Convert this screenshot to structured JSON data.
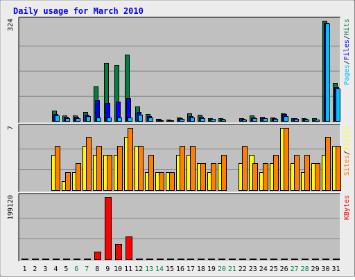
{
  "chart_data": {
    "type": "bar",
    "title": "Daily usage for March 2010",
    "days": [
      "1",
      "2",
      "3",
      "4",
      "5",
      "6",
      "7",
      "8",
      "9",
      "10",
      "11",
      "12",
      "13",
      "14",
      "15",
      "16",
      "17",
      "18",
      "19",
      "20",
      "21",
      "22",
      "23",
      "24",
      "25",
      "26",
      "27",
      "28",
      "29",
      "30",
      "31"
    ],
    "weekend_days": [
      "6",
      "7",
      "13",
      "14",
      "20",
      "21",
      "27",
      "28"
    ],
    "colors": {
      "background": "#c0c0c0",
      "frame": "#ececec",
      "title": "#0000ff",
      "weekday_label": "#000000",
      "weekend_label": "#008040",
      "hits": "#008040",
      "files": "#0000ff",
      "pages": "#00c0ff",
      "visits": "#ffff00",
      "sites": "#ff8000",
      "kbytes": "#ff0000",
      "gridline": "#808080"
    },
    "panels": [
      {
        "id": "hits-files-pages",
        "scale_label": "324",
        "ymax": 324,
        "legend": [
          "Pages",
          "/",
          "Files",
          "/",
          "Hits"
        ],
        "series": [
          {
            "name": "Hits",
            "values": [
              0,
              0,
              0,
              34,
              18,
              18,
              30,
              112,
              188,
              182,
              214,
              46,
              22,
              6,
              4,
              12,
              24,
              20,
              10,
              8,
              0,
              8,
              18,
              14,
              12,
              24,
              10,
              10,
              8,
              324,
              124
            ]
          },
          {
            "name": "Files",
            "values": [
              0,
              0,
              0,
              22,
              14,
              14,
              20,
              66,
              58,
              62,
              74,
              28,
              16,
              4,
              2,
              8,
              16,
              14,
              6,
              6,
              0,
              6,
              12,
              10,
              8,
              22,
              8,
              6,
              4,
              318,
              110
            ]
          },
          {
            "name": "Pages",
            "values": [
              0,
              0,
              0,
              18,
              10,
              10,
              16,
              12,
              12,
              12,
              12,
              20,
              12,
              3,
              2,
              6,
              12,
              8,
              6,
              4,
              0,
              4,
              10,
              8,
              6,
              16,
              6,
              4,
              4,
              316,
              104
            ]
          }
        ]
      },
      {
        "id": "visits-sites",
        "scale_label": "7",
        "ymax": 7,
        "legend": [
          "Sites",
          "/",
          "Visits"
        ],
        "series": [
          {
            "name": "Visits",
            "values": [
              0,
              0,
              0,
              4,
              1,
              2,
              5,
              4,
              4,
              4,
              6,
              5,
              2,
              2,
              2,
              4,
              4,
              3,
              2,
              3,
              0,
              3,
              4,
              2,
              3,
              7,
              3,
              2,
              3,
              4,
              5
            ]
          },
          {
            "name": "Sites",
            "values": [
              0,
              0,
              0,
              5,
              2,
              3,
              6,
              5,
              4,
              5,
              7,
              5,
              4,
              2,
              2,
              5,
              5,
              3,
              3,
              4,
              0,
              5,
              3,
              3,
              4,
              7,
              4,
              4,
              3,
              6,
              5
            ]
          }
        ]
      },
      {
        "id": "kbytes",
        "scale_label": "199120",
        "ymax": 199120,
        "legend": [
          "KBytes"
        ],
        "series": [
          {
            "name": "KBytes",
            "values": [
              0,
              0,
              0,
              0,
              0,
              0,
              0,
              24000,
              199120,
              48000,
              72000,
              0,
              0,
              0,
              0,
              0,
              0,
              0,
              0,
              0,
              0,
              0,
              0,
              0,
              0,
              0,
              0,
              0,
              0,
              0,
              0
            ]
          }
        ]
      }
    ],
    "grid": true
  }
}
